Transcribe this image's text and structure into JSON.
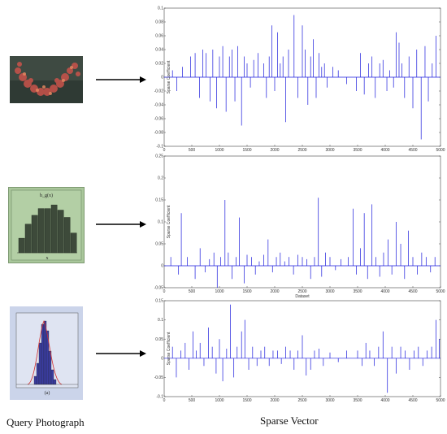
{
  "captions": {
    "left": "Query Photograph",
    "right": "Sparse Vector"
  },
  "query_images": [
    {
      "name": "coral-photograph",
      "description": ""
    },
    {
      "name": "bar-histogram-image",
      "title": "h_g(x)",
      "xlabel": "x",
      "bar_levels": [
        0.28,
        0.55,
        0.72,
        0.85,
        0.85,
        0.92,
        0.82,
        0.68,
        0.38
      ]
    },
    {
      "name": "gaussian-histogram-image",
      "xlabel": "(a)"
    }
  ],
  "chart_data": [
    {
      "type": "bar",
      "subtype": "stem",
      "xlabel": "",
      "ylabel": "Sparse Coefficient",
      "xlim": [
        0,
        5000
      ],
      "ylim": [
        -0.1,
        0.1
      ],
      "yticks": [
        "0.1",
        "0.08",
        "0.06",
        "0.04",
        "0.02",
        "0",
        "-0.02",
        "-0.04",
        "-0.06",
        "-0.08",
        "-0.1"
      ],
      "xticks": [
        "0",
        "500",
        "1000",
        "1500",
        "2000",
        "2500",
        "3000",
        "3500",
        "4000",
        "4500",
        "5000"
      ],
      "series_color": "#1a1adc",
      "x": [
        150,
        230,
        330,
        480,
        560,
        640,
        700,
        760,
        830,
        880,
        950,
        1000,
        1060,
        1120,
        1180,
        1230,
        1280,
        1330,
        1400,
        1450,
        1500,
        1560,
        1620,
        1700,
        1800,
        1850,
        1900,
        1950,
        2000,
        2050,
        2100,
        2150,
        2200,
        2250,
        2350,
        2420,
        2500,
        2550,
        2600,
        2650,
        2700,
        2750,
        2800,
        2850,
        2900,
        2950,
        3050,
        3150,
        3300,
        3480,
        3550,
        3620,
        3700,
        3760,
        3820,
        3900,
        3960,
        4030,
        4080,
        4150,
        4200,
        4250,
        4300,
        4350,
        4430,
        4500,
        4570,
        4650,
        4720,
        4780,
        4850,
        4920
      ],
      "values": [
        0.01,
        -0.02,
        0.015,
        0.03,
        0.035,
        -0.03,
        0.04,
        0.035,
        -0.035,
        0.04,
        -0.045,
        0.03,
        0.045,
        -0.05,
        0.03,
        0.04,
        -0.035,
        0.045,
        -0.07,
        0.03,
        0.02,
        -0.015,
        0.025,
        0.035,
        0.02,
        -0.03,
        0.03,
        0.075,
        -0.02,
        0.065,
        0.02,
        0.03,
        -0.065,
        0.04,
        0.09,
        -0.03,
        0.075,
        0.04,
        -0.04,
        0.03,
        0.055,
        -0.03,
        0.035,
        0.015,
        0.02,
        -0.015,
        0.015,
        0.01,
        -0.01,
        -0.02,
        0.035,
        -0.025,
        0.02,
        0.03,
        -0.03,
        0.02,
        0.025,
        -0.02,
        0.01,
        -0.015,
        0.065,
        0.05,
        0.02,
        -0.03,
        0.03,
        -0.045,
        0.04,
        -0.09,
        0.045,
        -0.035,
        0.02,
        0.06
      ]
    },
    {
      "type": "bar",
      "subtype": "stem",
      "xlabel": "Dataset",
      "ylabel": "Sparse Coefficient",
      "xlim": [
        0,
        5000
      ],
      "ylim": [
        -0.05,
        0.25
      ],
      "yticks": [
        "0.25",
        "0.2",
        "0.15",
        "0.1",
        "0.05",
        "0",
        "-0.05"
      ],
      "xticks": [
        "0",
        "500",
        "1000",
        "1500",
        "2000",
        "2500",
        "3000",
        "3500",
        "4000",
        "4500",
        "5000"
      ],
      "series_color": "#1a1adc",
      "x": [
        120,
        260,
        310,
        420,
        560,
        650,
        740,
        820,
        900,
        960,
        1020,
        1100,
        1160,
        1230,
        1300,
        1360,
        1450,
        1500,
        1580,
        1650,
        1720,
        1800,
        1880,
        1960,
        2030,
        2100,
        2180,
        2260,
        2340,
        2420,
        2500,
        2580,
        2650,
        2720,
        2790,
        2850,
        2920,
        3000,
        3100,
        3200,
        3330,
        3420,
        3480,
        3550,
        3620,
        3680,
        3760,
        3830,
        3900,
        3970,
        4050,
        4120,
        4200,
        4280,
        4350,
        4420,
        4500,
        4580,
        4660,
        4740,
        4820,
        4900
      ],
      "values": [
        0.02,
        -0.02,
        0.12,
        0.02,
        -0.03,
        0.04,
        -0.015,
        0.015,
        0.03,
        -0.05,
        0.02,
        0.15,
        0.03,
        -0.03,
        0.02,
        0.11,
        -0.04,
        0.025,
        0.02,
        -0.02,
        0.01,
        0.025,
        0.06,
        -0.015,
        0.02,
        0.03,
        0.01,
        0.02,
        -0.02,
        0.025,
        0.02,
        0.015,
        -0.03,
        0.02,
        0.155,
        -0.025,
        0.03,
        0.02,
        -0.01,
        0.015,
        0.02,
        0.13,
        -0.02,
        0.04,
        0.12,
        -0.03,
        0.14,
        0.02,
        -0.025,
        0.03,
        0.06,
        -0.02,
        0.1,
        0.05,
        -0.03,
        0.08,
        0.02,
        -0.02,
        0.03,
        0.02,
        -0.015,
        0.02
      ]
    },
    {
      "type": "bar",
      "subtype": "stem",
      "xlabel": "",
      "ylabel": "Sparse Coefficient",
      "xlim": [
        0,
        5000
      ],
      "ylim": [
        -0.1,
        0.15
      ],
      "yticks": [
        "0.15",
        "0.1",
        "0.05",
        "0",
        "-0.05",
        "-0.1"
      ],
      "xticks": [
        "0",
        "500",
        "1000",
        "1500",
        "2000",
        "2500",
        "3000",
        "3500",
        "4000",
        "4500",
        "5000"
      ],
      "series_color": "#1a1adc",
      "x": [
        150,
        220,
        300,
        380,
        450,
        520,
        580,
        650,
        720,
        800,
        870,
        940,
        1000,
        1060,
        1130,
        1200,
        1260,
        1320,
        1400,
        1460,
        1530,
        1600,
        1680,
        1750,
        1820,
        1900,
        1970,
        2050,
        2120,
        2200,
        2280,
        2350,
        2420,
        2500,
        2570,
        2650,
        2720,
        2800,
        2880,
        3000,
        3150,
        3300,
        3500,
        3580,
        3650,
        3720,
        3800,
        3880,
        3960,
        4040,
        4120,
        4200,
        4280,
        4360,
        4440,
        4520,
        4600,
        4680,
        4760,
        4840,
        4920,
        4980
      ],
      "values": [
        0.03,
        -0.05,
        0.02,
        0.04,
        -0.03,
        0.07,
        0.02,
        0.04,
        -0.02,
        0.08,
        0.03,
        -0.04,
        0.05,
        -0.06,
        0.025,
        0.14,
        -0.05,
        0.03,
        0.07,
        0.1,
        -0.03,
        0.03,
        -0.02,
        0.02,
        0.03,
        -0.02,
        0.02,
        0.02,
        -0.015,
        0.03,
        0.02,
        -0.03,
        0.02,
        0.06,
        -0.045,
        -0.03,
        0.02,
        0.025,
        -0.02,
        0.015,
        -0.01,
        0.02,
        0.02,
        -0.02,
        0.04,
        0.02,
        -0.02,
        0.03,
        0.07,
        -0.09,
        0.03,
        -0.04,
        0.03,
        0.02,
        -0.03,
        0.02,
        0.03,
        -0.02,
        0.02,
        0.03,
        0.1,
        0.05
      ]
    }
  ]
}
